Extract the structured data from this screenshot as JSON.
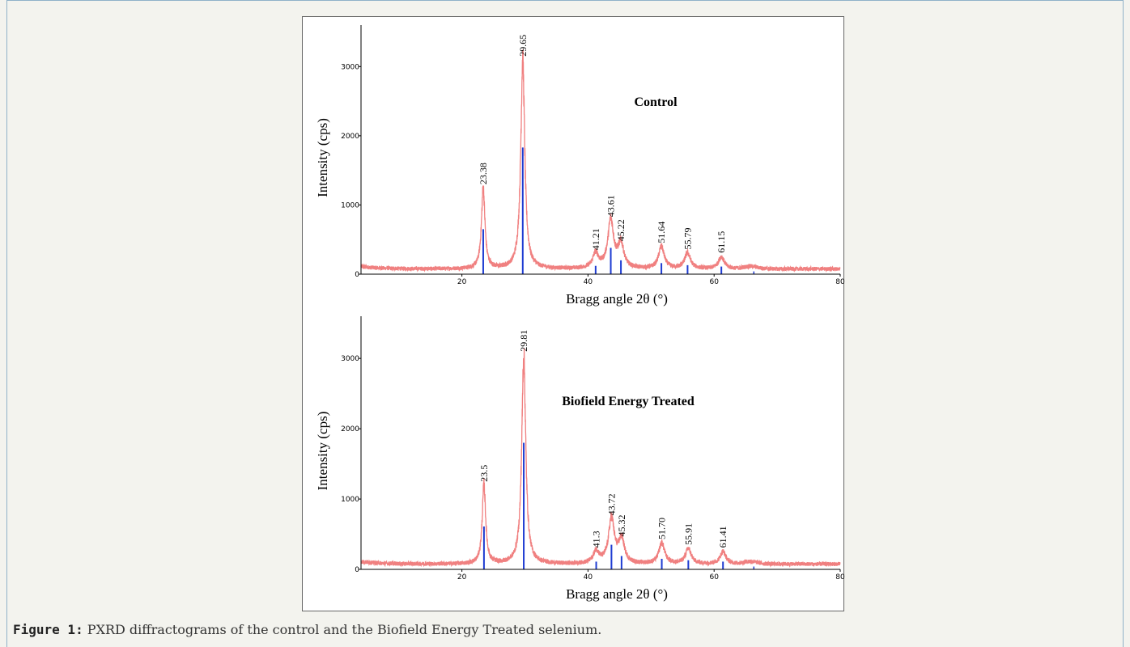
{
  "caption": {
    "label": "Figure 1:",
    "text": "PXRD diffractograms of the control and the Biofield Energy Treated selenium."
  },
  "colors": {
    "pattern": "#f08080",
    "sticks": "#1e3cd2",
    "axis": "#000000"
  },
  "chart_data": [
    {
      "type": "line",
      "panel_label": "Control",
      "xlabel": "Bragg angle 2θ (°)",
      "ylabel": "Intensity (cps)",
      "xlim": [
        4,
        80
      ],
      "ylim": [
        0,
        3600
      ],
      "x_ticks": [
        20,
        40,
        60,
        80
      ],
      "y_ticks": [
        0,
        1000,
        2000,
        3000
      ],
      "background_level": 100,
      "peaks": [
        {
          "x": 23.38,
          "label": "23.38",
          "y": 1250,
          "stick": 650
        },
        {
          "x": 29.65,
          "label": "29.65",
          "y": 3100,
          "stick": 1830
        },
        {
          "x": 41.21,
          "label": "41.21",
          "y": 300,
          "stick": 120
        },
        {
          "x": 43.61,
          "label": "43.61",
          "y": 780,
          "stick": 380
        },
        {
          "x": 45.22,
          "label": "45.22",
          "y": 430,
          "stick": 200
        },
        {
          "x": 51.64,
          "label": "51.64",
          "y": 400,
          "stick": 160
        },
        {
          "x": 55.79,
          "label": "55.79",
          "y": 310,
          "stick": 130
        },
        {
          "x": 61.15,
          "label": "61.15",
          "y": 260,
          "stick": 110
        }
      ]
    },
    {
      "type": "line",
      "panel_label": "Biofield Energy Treated",
      "xlabel": "Bragg angle 2θ (°)",
      "ylabel": "Intensity (cps)",
      "xlim": [
        4,
        80
      ],
      "ylim": [
        0,
        3600
      ],
      "x_ticks": [
        20,
        40,
        60,
        80
      ],
      "y_ticks": [
        0,
        1000,
        2000,
        3000
      ],
      "background_level": 100,
      "peaks": [
        {
          "x": 23.5,
          "label": "23.5",
          "y": 1200,
          "stick": 610
        },
        {
          "x": 29.81,
          "label": "29.81",
          "y": 3050,
          "stick": 1800
        },
        {
          "x": 41.3,
          "label": "41.3",
          "y": 260,
          "stick": 110
        },
        {
          "x": 43.72,
          "label": "43.72",
          "y": 720,
          "stick": 350
        },
        {
          "x": 45.32,
          "label": "45.32",
          "y": 420,
          "stick": 190
        },
        {
          "x": 51.7,
          "label": "51.70",
          "y": 380,
          "stick": 150
        },
        {
          "x": 55.91,
          "label": "55.91",
          "y": 300,
          "stick": 130
        },
        {
          "x": 61.41,
          "label": "61.41",
          "y": 260,
          "stick": 110
        }
      ]
    }
  ]
}
